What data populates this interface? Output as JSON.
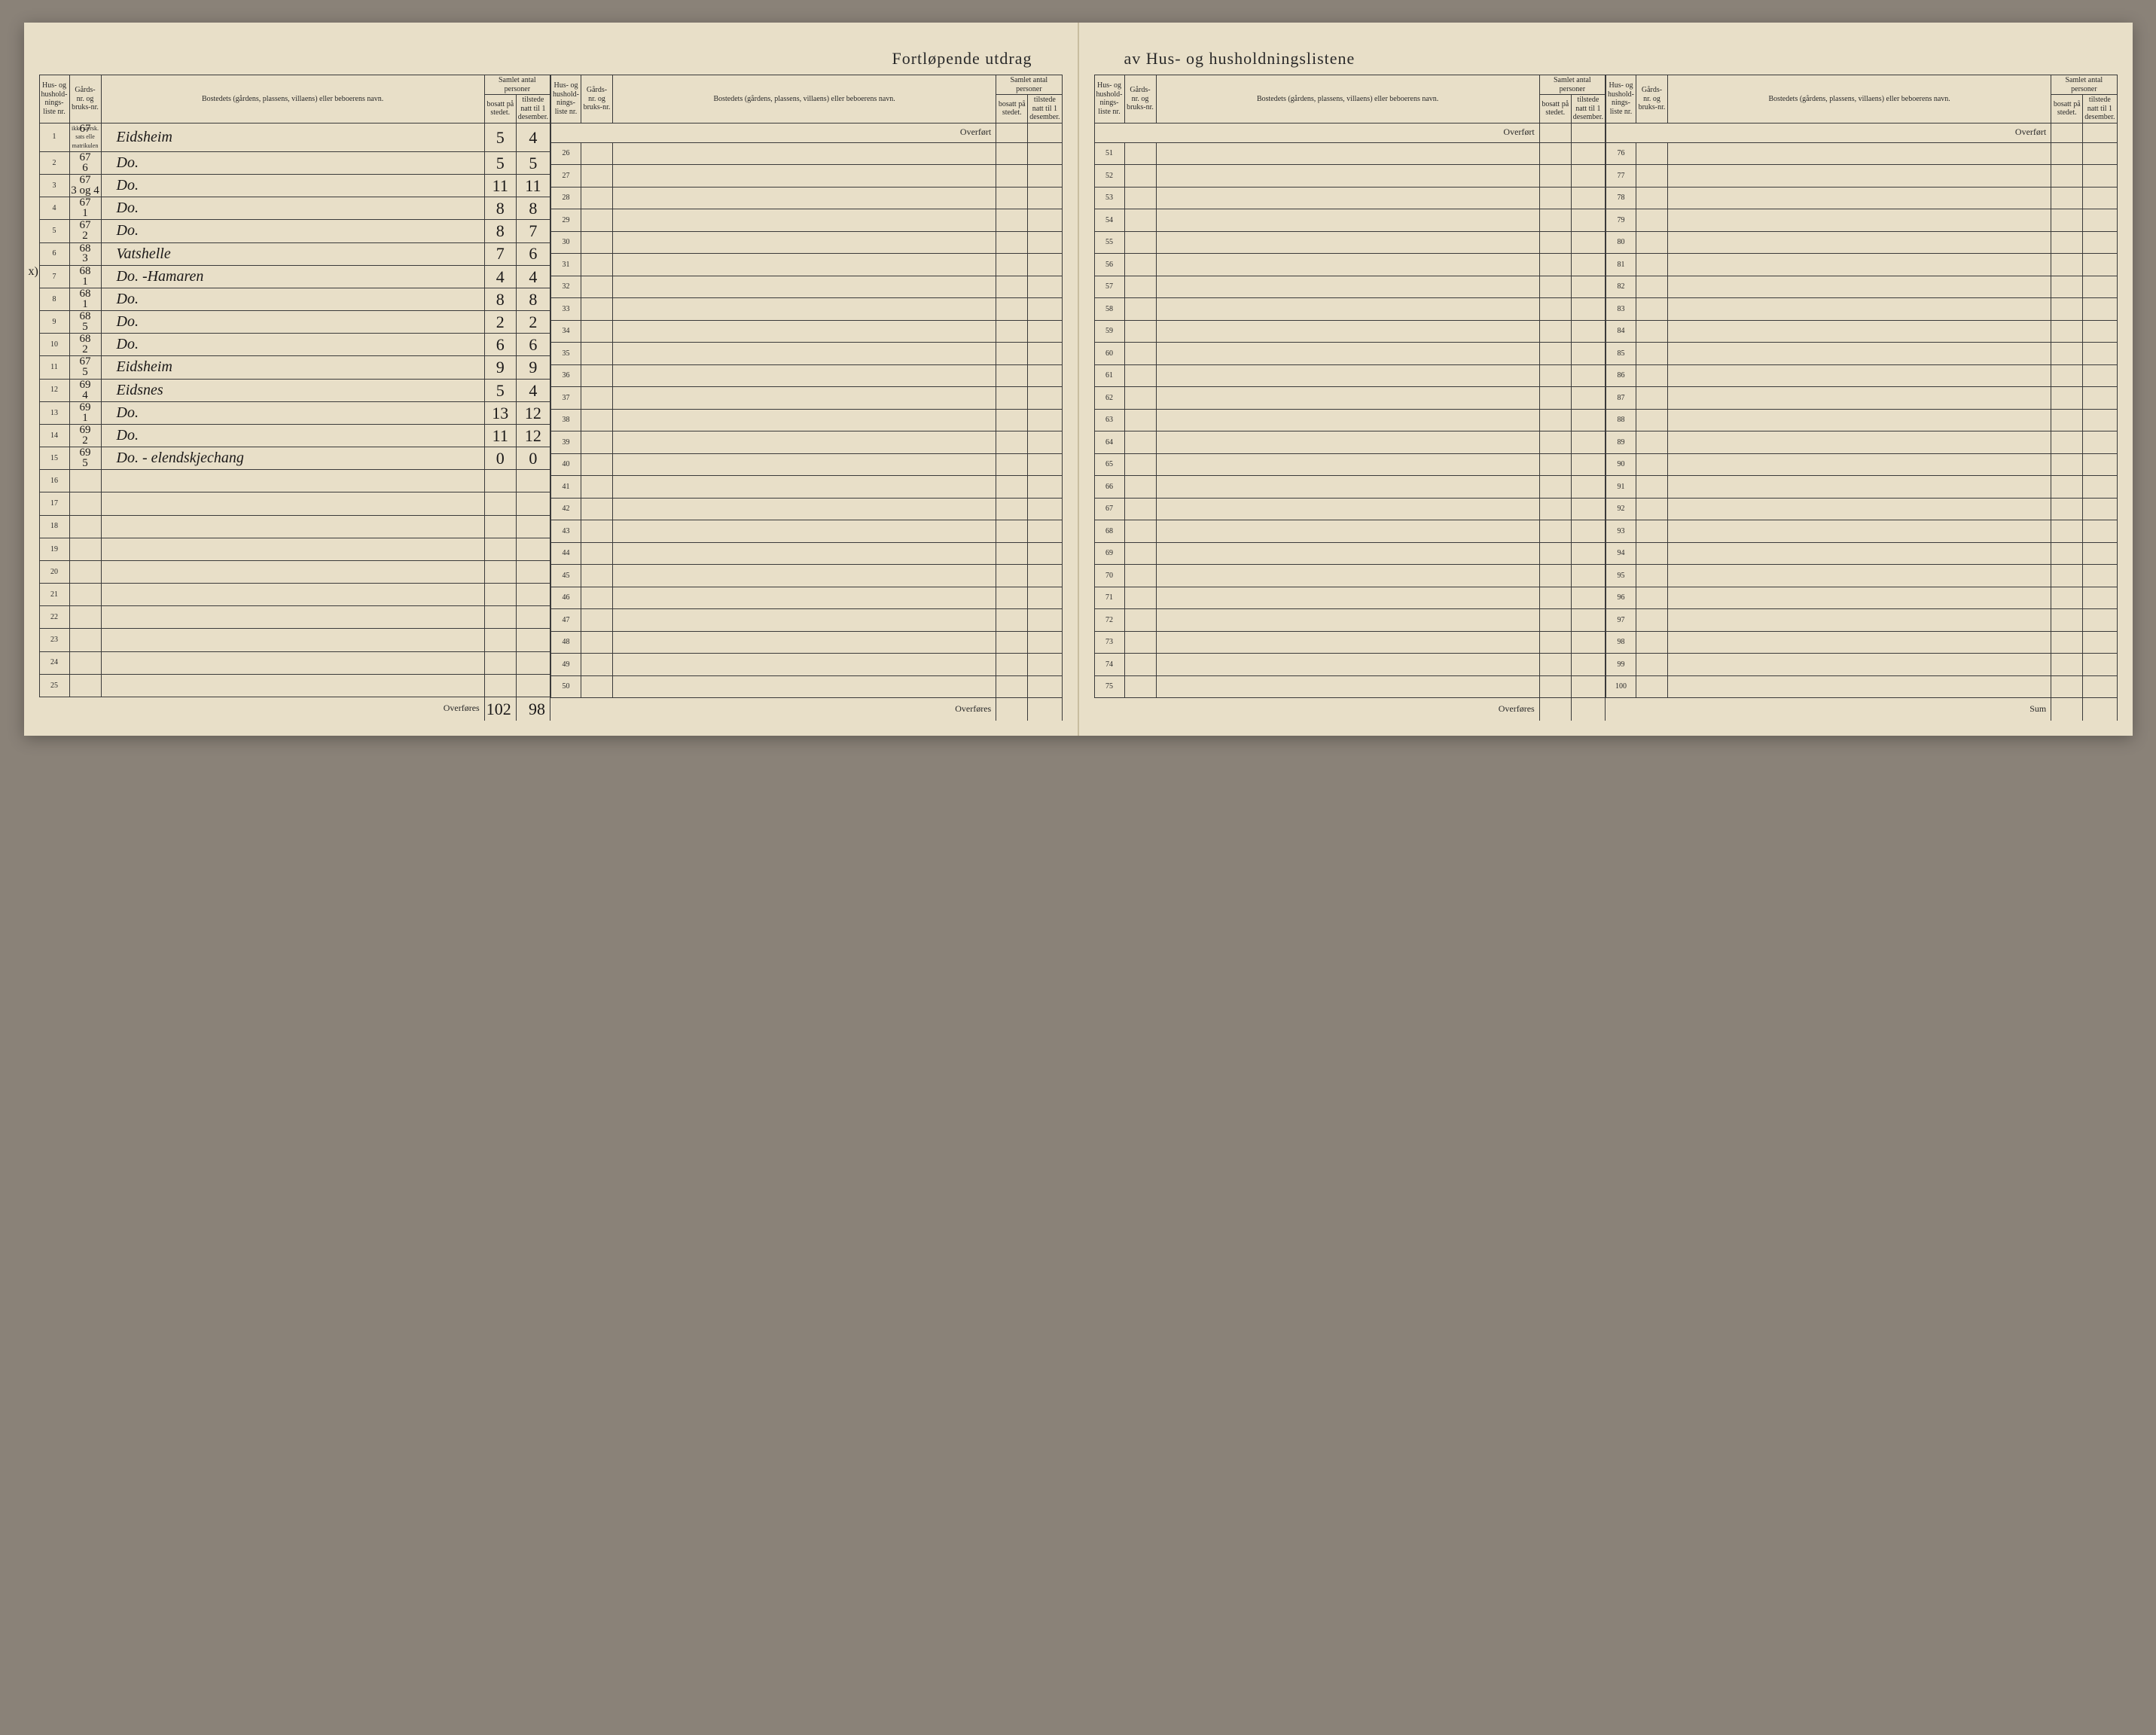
{
  "title_left": "Fortløpende utdrag",
  "title_right": "av Hus- og husholdningslistene",
  "headers": {
    "samlet": "Samlet antal personer",
    "liste": "Hus- og hushold-nings-liste nr.",
    "gard": "Gårds-nr. og bruks-nr.",
    "bosted": "Bostedets (gårdens, plassens, villaens) eller beboerens navn.",
    "bosatt": "bosatt på stedet.",
    "tilstede": "tilstede natt til 1 desember."
  },
  "labels": {
    "overfort": "Overført",
    "overfores": "Overføres",
    "sum": "Sum"
  },
  "rows": [
    {
      "n": "1",
      "g1": "67",
      "g2": "",
      "gnote": "ikke særsk. sats elle matrikulen",
      "name": "Eidsheim",
      "b": "5",
      "t": "4"
    },
    {
      "n": "2",
      "g1": "67",
      "g2": "6",
      "name": "Do.",
      "b": "5",
      "t": "5"
    },
    {
      "n": "3",
      "g1": "67",
      "g2": "3 og 4",
      "name": "Do.",
      "b": "11",
      "t": "11"
    },
    {
      "n": "4",
      "g1": "67",
      "g2": "1",
      "name": "Do.",
      "b": "8",
      "t": "8"
    },
    {
      "n": "5",
      "g1": "67",
      "g2": "2",
      "name": "Do.",
      "b": "8",
      "t": "7"
    },
    {
      "n": "6",
      "g1": "68",
      "g2": "3",
      "name": "Vatshelle",
      "b": "7",
      "t": "6"
    },
    {
      "n": "7",
      "g1": "68",
      "g2": "1",
      "name": "Do. -Hamaren",
      "b": "4",
      "t": "4",
      "annot": "x)"
    },
    {
      "n": "8",
      "g1": "68",
      "g2": "1",
      "name": "Do.",
      "b": "8",
      "t": "8"
    },
    {
      "n": "9",
      "g1": "68",
      "g2": "5",
      "name": "Do.",
      "b": "2",
      "t": "2"
    },
    {
      "n": "10",
      "g1": "68",
      "g2": "2",
      "name": "Do.",
      "b": "6",
      "t": "6"
    },
    {
      "n": "11",
      "g1": "67",
      "g2": "5",
      "name": "Eidsheim",
      "b": "9",
      "t": "9"
    },
    {
      "n": "12",
      "g1": "69",
      "g2": "4",
      "name": "Eidsnes",
      "b": "5",
      "t": "4"
    },
    {
      "n": "13",
      "g1": "69",
      "g2": "1",
      "name": "Do.",
      "b": "13",
      "t": "12"
    },
    {
      "n": "14",
      "g1": "69",
      "g2": "2",
      "name": "Do.",
      "b": "11",
      "t": "12"
    },
    {
      "n": "15",
      "g1": "69",
      "g2": "5",
      "name": "Do. - elendskjechang",
      "b": "0",
      "t": "0"
    },
    {
      "n": "16"
    },
    {
      "n": "17"
    },
    {
      "n": "18"
    },
    {
      "n": "19"
    },
    {
      "n": "20"
    },
    {
      "n": "21"
    },
    {
      "n": "22"
    },
    {
      "n": "23"
    },
    {
      "n": "24"
    },
    {
      "n": "25"
    }
  ],
  "totals": {
    "b": "102",
    "t": "98"
  },
  "block2_start": 26,
  "block3_start": 51,
  "block4_start": 76,
  "colors": {
    "paper": "#e8dfc8",
    "ink": "#2a2a2a",
    "hand": "#1a1818",
    "rule": "#3a3a3a",
    "bg": "#8a8278"
  }
}
